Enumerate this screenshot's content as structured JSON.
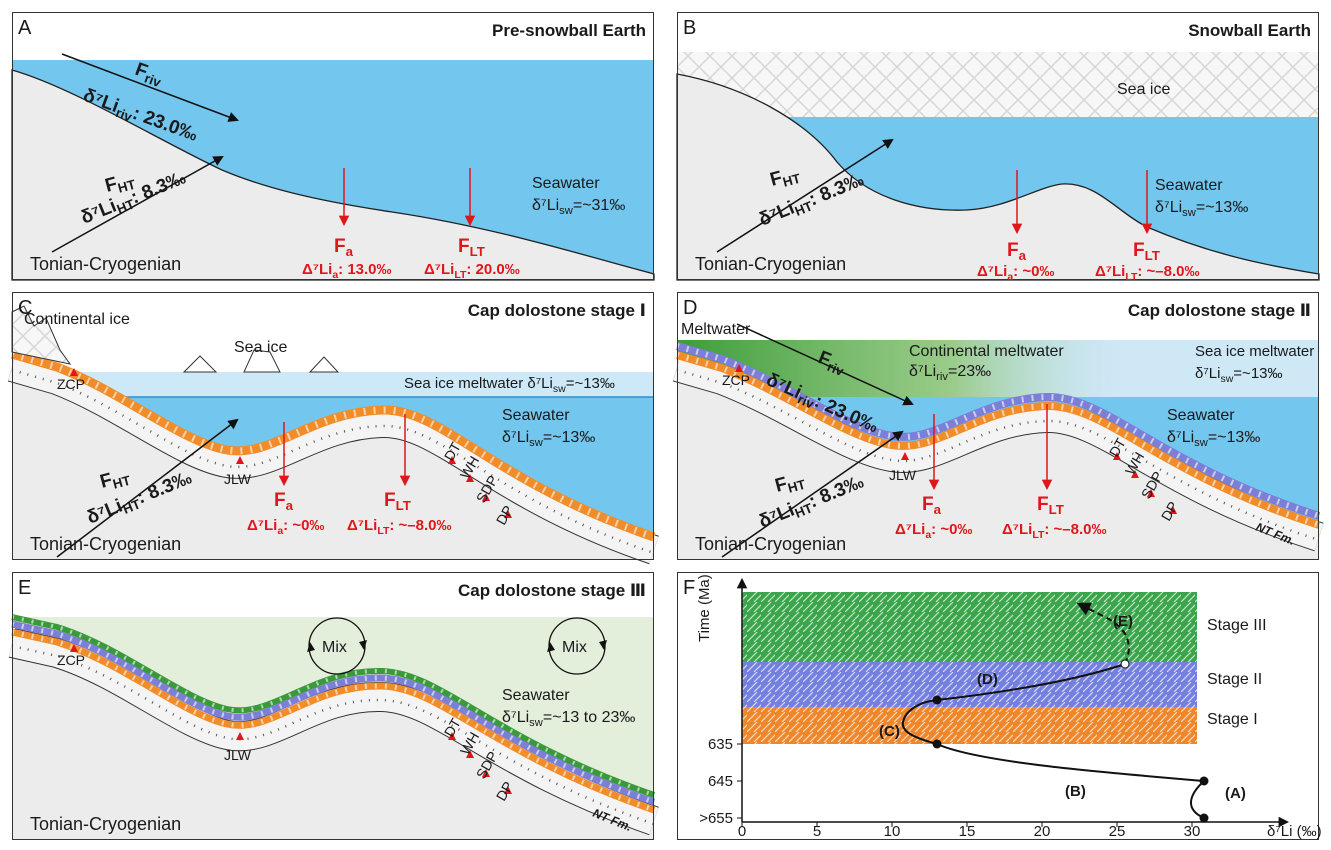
{
  "panels": {
    "a": {
      "letter": "A",
      "title": "Pre-snowball Earth",
      "f_riv": {
        "main": "F",
        "sub": "riv"
      },
      "d_riv": {
        "pre": "δ⁷Li",
        "sub": "riv",
        "post": ": 23.0‰"
      },
      "f_ht": {
        "main": "F",
        "sub": "HT"
      },
      "d_ht": {
        "pre": "δ⁷Li",
        "sub": "HT",
        "post": ": 8.3‰"
      },
      "seawater": "Seawater",
      "d_sw": {
        "pre": "δ⁷Li",
        "sub": "sw",
        "post": "=~31‰"
      },
      "f_a": {
        "main": "F",
        "sub": "a"
      },
      "d_a": {
        "pre": "Δ⁷Li",
        "sub": "a",
        "post": ": 13.0‰"
      },
      "f_lt": {
        "main": "F",
        "sub": "LT"
      },
      "d_lt": {
        "pre": "Δ⁷Li",
        "sub": "LT",
        "post": ": 20.0‰"
      },
      "rock": "Tonian-Cryogenian"
    },
    "b": {
      "letter": "B",
      "title": "Snowball Earth",
      "sea_ice": "Sea ice",
      "f_ht": {
        "main": "F",
        "sub": "HT"
      },
      "d_ht": {
        "pre": "δ⁷Li",
        "sub": "HT",
        "post": ": 8.3‰"
      },
      "seawater": "Seawater",
      "d_sw": {
        "pre": "δ⁷Li",
        "sub": "sw",
        "post": "=~13‰"
      },
      "f_a": {
        "main": "F",
        "sub": "a"
      },
      "d_a": {
        "pre": "Δ⁷Li",
        "sub": "a",
        "post": ": ~0‰"
      },
      "f_lt": {
        "main": "F",
        "sub": "LT"
      },
      "d_lt": {
        "pre": "Δ⁷Li",
        "sub": "LT",
        "post": ": ~–8.0‰"
      },
      "rock": "Tonian-Cryogenian"
    },
    "c": {
      "letter": "C",
      "title": "Cap dolostone stage Ⅰ",
      "continental_ice": "Continental ice",
      "sea_ice": "Sea ice",
      "meltwater": {
        "pre": "Sea ice meltwater δ⁷Li",
        "sub": "sw",
        "post": "=~13‰"
      },
      "sites": {
        "zcp": "ZCP",
        "jlw": "JLW",
        "dt": "DT",
        "wh": "WH",
        "sdp": "SDP",
        "dp": "DP"
      },
      "f_ht": {
        "main": "F",
        "sub": "HT"
      },
      "d_ht": {
        "pre": "δ⁷Li",
        "sub": "HT",
        "post": ": 8.3‰"
      },
      "seawater": "Seawater",
      "d_sw": {
        "pre": "δ⁷Li",
        "sub": "sw",
        "post": "=~13‰"
      },
      "f_a": {
        "main": "F",
        "sub": "a"
      },
      "d_a": {
        "pre": "Δ⁷Li",
        "sub": "a",
        "post": ": ~0‰"
      },
      "f_lt": {
        "main": "F",
        "sub": "LT"
      },
      "d_lt": {
        "pre": "Δ⁷Li",
        "sub": "LT",
        "post": ": ~–8.0‰"
      },
      "rock": "Tonian-Cryogenian"
    },
    "d": {
      "letter": "D",
      "title": "Cap dolostone stage Ⅱ",
      "meltwater": "Meltwater",
      "f_riv": {
        "main": "F",
        "sub": "riv"
      },
      "d_riv": {
        "pre": "δ⁷Li",
        "sub": "riv",
        "post": ": 23.0‰"
      },
      "cont_meltwater": "Continental meltwater",
      "d_riv2": {
        "pre": "δ⁷Li",
        "sub": "riv",
        "post": "=23‰"
      },
      "seaice_meltwater": "Sea ice meltwater",
      "d_sw_top": {
        "pre": "δ⁷Li",
        "sub": "sw",
        "post": "=~13‰"
      },
      "seawater": "Seawater",
      "d_sw": {
        "pre": "δ⁷Li",
        "sub": "sw",
        "post": "=~13‰"
      },
      "sites": {
        "zcp": "ZCP",
        "jlw": "JLW",
        "dt": "DT",
        "wh": "WH",
        "sdp": "SDP",
        "dp": "DP"
      },
      "nt": "NT Fm.",
      "f_ht": {
        "main": "F",
        "sub": "HT"
      },
      "d_ht": {
        "pre": "δ⁷Li",
        "sub": "HT",
        "post": ": 8.3‰"
      },
      "f_a": {
        "main": "F",
        "sub": "a"
      },
      "d_a": {
        "pre": "Δ⁷Li",
        "sub": "a",
        "post": ": ~0‰"
      },
      "f_lt": {
        "main": "F",
        "sub": "LT"
      },
      "d_lt": {
        "pre": "Δ⁷Li",
        "sub": "LT",
        "post": ": ~–8.0‰"
      },
      "rock": "Tonian-Cryogenian"
    },
    "e": {
      "letter": "E",
      "title": "Cap dolostone stage Ⅲ",
      "mix": [
        "Mix",
        "Mix"
      ],
      "seawater": "Seawater",
      "d_sw": {
        "pre": "δ⁷Li",
        "sub": "sw",
        "post": "=~13 to 23‰"
      },
      "sites": {
        "zcp": "ZCP",
        "jlw": "JLW",
        "dt": "DT",
        "wh": "WH",
        "sdp": "SDP",
        "dp": "DP"
      },
      "nt": "NT Fm.",
      "rock": "Tonian-Cryogenian"
    },
    "f": {
      "letter": "F",
      "ylabel": "Time (Ma)",
      "xlabel": "δ⁷Li (‰)",
      "xticks": [
        0,
        5,
        10,
        15,
        20,
        25,
        30
      ],
      "yticks": [
        635,
        645,
        {
          "value": 655,
          "label": ">655"
        }
      ],
      "stages": [
        "Stage III",
        "Stage II",
        "Stage I"
      ],
      "curve_labels": [
        "(A)",
        "(B)",
        "(C)",
        "(D)",
        "(E)"
      ]
    }
  }
}
